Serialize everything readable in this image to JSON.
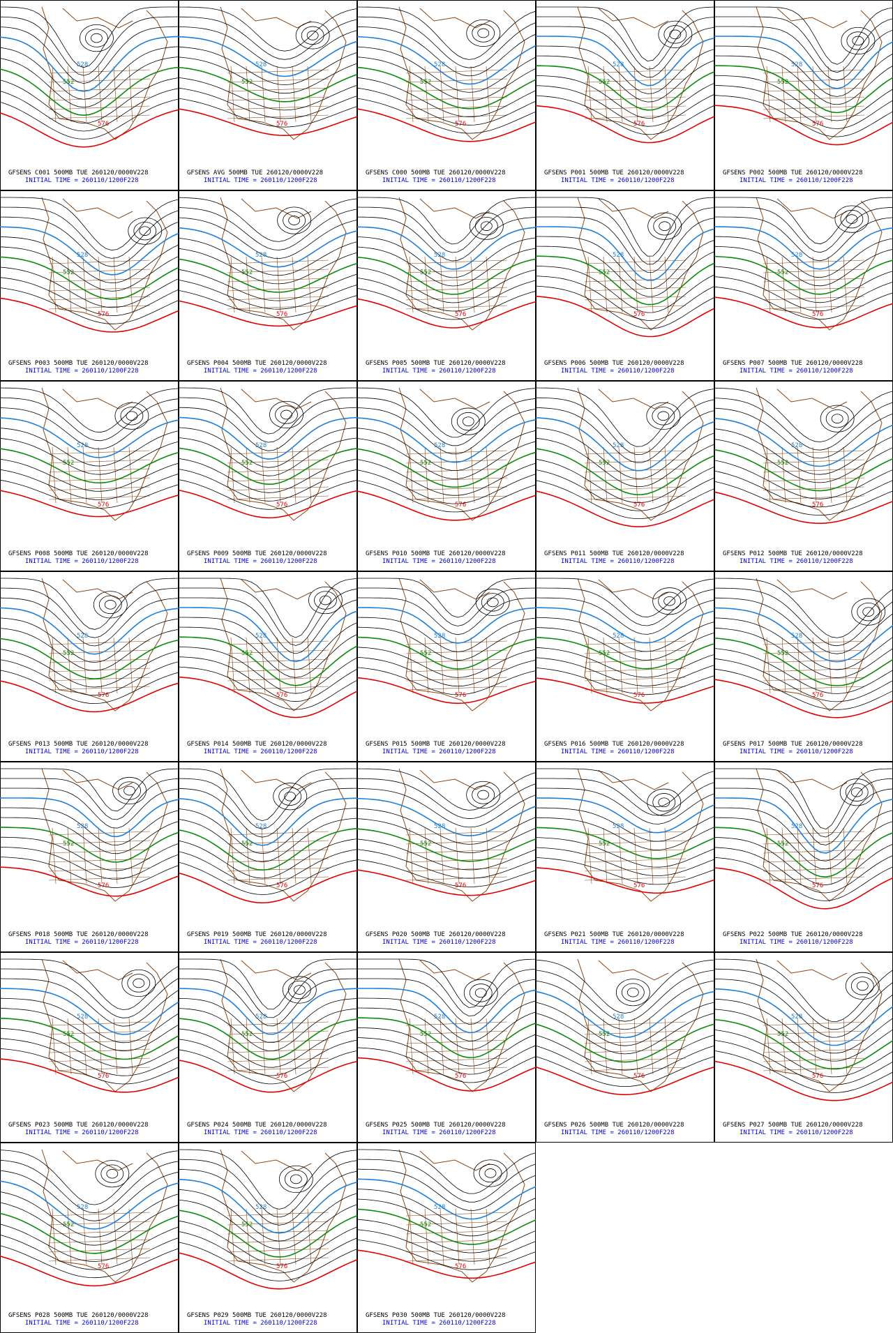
{
  "panels": [
    {
      "title": "GFSENS C001 500MB TUE 260120/0000V228",
      "init": "INITIAL TIME = 260110/1200F228",
      "labels": [
        "576",
        "552",
        "528"
      ]
    },
    {
      "title": "GFSENS AVG 500MB TUE 260120/0000V228",
      "init": "INITIAL TIME = 260110/1200F228",
      "labels": [
        "576",
        "552",
        "528"
      ]
    },
    {
      "title": "GFSENS C000 500MB TUE 260120/0000V228",
      "init": "INITIAL TIME = 260110/1200F228",
      "labels": [
        "576",
        "552",
        "528"
      ]
    },
    {
      "title": "GFSENS P001 500MB TUE 260120/0000V228",
      "init": "INITIAL TIME = 260110/1200F228",
      "labels": [
        "576",
        "552",
        "528"
      ]
    },
    {
      "title": "GFSENS P002 500MB TUE 260120/0000V228",
      "init": "INITIAL TIME = 260110/1200F228",
      "labels": [
        "576",
        "552",
        "528"
      ]
    },
    {
      "title": "GFSENS P003 500MB TUE 260120/0000V228",
      "init": "INITIAL TIME = 260110/1200F228",
      "labels": [
        "576",
        "552",
        "528"
      ]
    },
    {
      "title": "GFSENS P004 500MB TUE 260120/0000V228",
      "init": "INITIAL TIME = 260110/1200F228",
      "labels": [
        "576",
        "552",
        "528"
      ]
    },
    {
      "title": "GFSENS P005 500MB TUE 260120/0000V228",
      "init": "INITIAL TIME = 260110/1200F228",
      "labels": [
        "576",
        "552",
        "528"
      ]
    },
    {
      "title": "GFSENS P006 500MB TUE 260120/0000V228",
      "init": "INITIAL TIME = 260110/1200F228",
      "labels": [
        "576",
        "552",
        "528"
      ]
    },
    {
      "title": "GFSENS P007 500MB TUE 260120/0000V228",
      "init": "INITIAL TIME = 260110/1200F228",
      "labels": [
        "576",
        "552",
        "528"
      ]
    },
    {
      "title": "GFSENS P008 500MB TUE 260120/0000V228",
      "init": "INITIAL TIME = 260110/1200F228",
      "labels": [
        "576",
        "552",
        "528"
      ]
    },
    {
      "title": "GFSENS P009 500MB TUE 260120/0000V228",
      "init": "INITIAL TIME = 260110/1200F228",
      "labels": [
        "576",
        "552",
        "528"
      ]
    },
    {
      "title": "GFSENS P010 500MB TUE 260120/0000V228",
      "init": "INITIAL TIME = 260110/1200F228",
      "labels": [
        "576",
        "552",
        "528"
      ]
    },
    {
      "title": "GFSENS P011 500MB TUE 260120/0000V228",
      "init": "INITIAL TIME = 260110/1200F228",
      "labels": [
        "576",
        "552",
        "528"
      ]
    },
    {
      "title": "GFSENS P012 500MB TUE 260120/0000V228",
      "init": "INITIAL TIME = 260110/1200F228",
      "labels": [
        "576",
        "552",
        "528"
      ]
    },
    {
      "title": "GFSENS P013 500MB TUE 260120/0000V228",
      "init": "INITIAL TIME = 260110/1200F228",
      "labels": [
        "576",
        "552",
        "528"
      ]
    },
    {
      "title": "GFSENS P014 500MB TUE 260120/0000V228",
      "init": "INITIAL TIME = 260110/1200F228",
      "labels": [
        "576",
        "552",
        "528"
      ]
    },
    {
      "title": "GFSENS P015 500MB TUE 260120/0000V228",
      "init": "INITIAL TIME = 260110/1200F228",
      "labels": [
        "576",
        "552",
        "528"
      ]
    },
    {
      "title": "GFSENS P016 500MB TUE 260120/0000V228",
      "init": "INITIAL TIME = 260110/1200F228",
      "labels": [
        "576",
        "552",
        "528"
      ]
    },
    {
      "title": "GFSENS P017 500MB TUE 260120/0000V228",
      "init": "INITIAL TIME = 260110/1200F228",
      "labels": [
        "576",
        "552",
        "528"
      ]
    },
    {
      "title": "GFSENS P018 500MB TUE 260120/0000V228",
      "init": "INITIAL TIME = 260110/1200F228",
      "labels": [
        "576",
        "552",
        "528"
      ]
    },
    {
      "title": "GFSENS P019 500MB TUE 260120/0000V228",
      "init": "INITIAL TIME = 260110/1200F228",
      "labels": [
        "576",
        "552",
        "528"
      ]
    },
    {
      "title": "GFSENS P020 500MB TUE 260120/0000V228",
      "init": "INITIAL TIME = 260110/1200F228",
      "labels": [
        "576",
        "552",
        "528"
      ]
    },
    {
      "title": "GFSENS P021 500MB TUE 260120/0000V228",
      "init": "INITIAL TIME = 260110/1200F228",
      "labels": [
        "576",
        "552",
        "528"
      ]
    },
    {
      "title": "GFSENS P022 500MB TUE 260120/0000V228",
      "init": "INITIAL TIME = 260110/1200F228",
      "labels": [
        "576",
        "552",
        "528"
      ]
    },
    {
      "title": "GFSENS P023 500MB TUE 260120/0000V228",
      "init": "INITIAL TIME = 260110/1200F228",
      "labels": [
        "576",
        "552",
        "528"
      ]
    },
    {
      "title": "GFSENS P024 500MB TUE 260120/0000V228",
      "init": "INITIAL TIME = 260110/1200F228",
      "labels": [
        "576",
        "552",
        "528"
      ]
    },
    {
      "title": "GFSENS P025 500MB TUE 260120/0000V228",
      "init": "INITIAL TIME = 260110/1200F228",
      "labels": [
        "576",
        "552",
        "528"
      ]
    },
    {
      "title": "GFSENS P026 500MB TUE 260120/0000V228",
      "init": "INITIAL TIME = 260110/1200F228",
      "labels": [
        "576",
        "552",
        "528"
      ]
    },
    {
      "title": "GFSENS P027 500MB TUE 260120/0000V228",
      "init": "INITIAL TIME = 260110/1200F228",
      "labels": [
        "576",
        "552",
        "528"
      ]
    },
    {
      "title": "GFSENS P028 500MB TUE 260120/0000V228",
      "init": "INITIAL TIME = 260110/1200F228",
      "labels": [
        "576",
        "552",
        "528"
      ]
    },
    {
      "title": "GFSENS P029 500MB TUE 260120/0000V228",
      "init": "INITIAL TIME = 260110/1200F228",
      "labels": [
        "576",
        "552",
        "528"
      ]
    },
    {
      "title": "GFSENS P030 500MB TUE 260120/0000V228",
      "init": "INITIAL TIME = 260110/1200F228",
      "labels": [
        "576",
        "552",
        "528"
      ]
    }
  ]
}
